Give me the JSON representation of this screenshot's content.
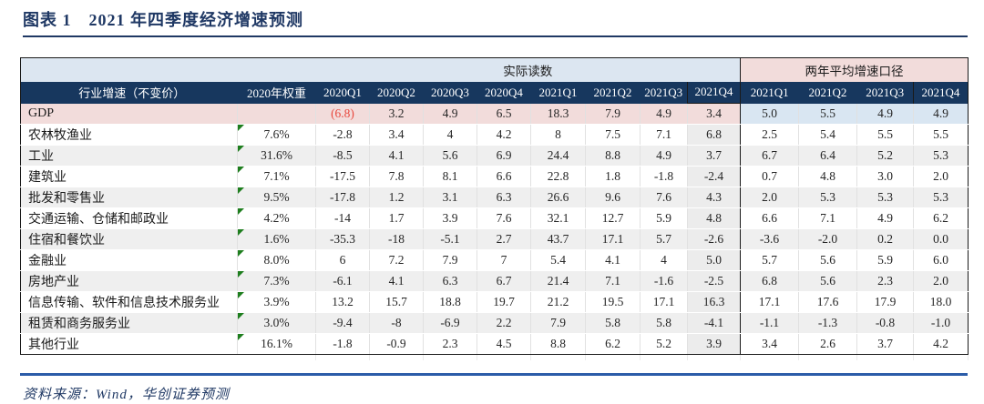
{
  "title": "图表 1　2021 年四季度经济增速预测",
  "source_note": "资料来源：Wind，华创证券预测",
  "colors": {
    "title_navy": "#1F3864",
    "header_navy": "#17375E",
    "band_blue": "#DCE6F1",
    "band_pink": "#F2DCDB",
    "gdp_row_pink": "#F2DCDB",
    "gdp_two_year_blue": "#D9E6F2",
    "alt_row_gray": "#EFEFEF",
    "negative_red": "#E8483E",
    "marker_green": "#1E7E1E",
    "footer_rule_blue": "#2B5CA8"
  },
  "table": {
    "bands": {
      "actual": "实际读数",
      "two_year": "两年平均增速口径"
    },
    "header": {
      "industry": "行业增速（不变价）",
      "weight": "2020年权重",
      "actual_quarters": [
        "2020Q1",
        "2020Q2",
        "2020Q3",
        "2020Q4",
        "2021Q1",
        "2021Q2",
        "2021Q3",
        "2021Q4"
      ],
      "two_year_quarters": [
        "2021Q1",
        "2021Q2",
        "2021Q3",
        "2021Q4"
      ]
    },
    "rows": [
      {
        "name": "GDP",
        "weight": "",
        "marker": false,
        "gdp": true,
        "red_first": true,
        "actual": [
          "(6.8)",
          "3.2",
          "4.9",
          "6.5",
          "18.3",
          "7.9",
          "4.9",
          "3.4"
        ],
        "two_year": [
          "5.0",
          "5.5",
          "4.9",
          "4.9"
        ]
      },
      {
        "name": "农林牧渔业",
        "weight": "7.6%",
        "marker": true,
        "actual": [
          "-2.8",
          "3.4",
          "4",
          "4.2",
          "8",
          "7.5",
          "7.1",
          "6.8"
        ],
        "two_year": [
          "2.5",
          "5.4",
          "5.5",
          "5.5"
        ]
      },
      {
        "name": "工业",
        "weight": "31.6%",
        "marker": true,
        "actual": [
          "-8.5",
          "4.1",
          "5.6",
          "6.9",
          "24.4",
          "8.8",
          "4.9",
          "3.7"
        ],
        "two_year": [
          "6.7",
          "6.4",
          "5.2",
          "5.3"
        ]
      },
      {
        "name": "建筑业",
        "weight": "7.1%",
        "marker": true,
        "actual": [
          "-17.5",
          "7.8",
          "8.1",
          "6.6",
          "22.8",
          "1.8",
          "-1.8",
          "-2.4"
        ],
        "two_year": [
          "0.7",
          "4.8",
          "3.0",
          "2.0"
        ]
      },
      {
        "name": "批发和零售业",
        "weight": "9.5%",
        "marker": true,
        "actual": [
          "-17.8",
          "1.2",
          "3.1",
          "6.3",
          "26.6",
          "9.6",
          "7.6",
          "4.3"
        ],
        "two_year": [
          "2.0",
          "5.3",
          "5.3",
          "5.3"
        ]
      },
      {
        "name": "交通运输、仓储和邮政业",
        "weight": "4.2%",
        "marker": true,
        "actual": [
          "-14",
          "1.7",
          "3.9",
          "7.6",
          "32.1",
          "12.7",
          "5.9",
          "4.8"
        ],
        "two_year": [
          "6.6",
          "7.1",
          "4.9",
          "6.2"
        ]
      },
      {
        "name": "住宿和餐饮业",
        "weight": "1.6%",
        "marker": true,
        "actual": [
          "-35.3",
          "-18",
          "-5.1",
          "2.7",
          "43.7",
          "17.1",
          "5.7",
          "-2.6"
        ],
        "two_year": [
          "-3.6",
          "-2.0",
          "0.2",
          "0.0"
        ]
      },
      {
        "name": "金融业",
        "weight": "8.0%",
        "marker": true,
        "actual": [
          "6",
          "7.2",
          "7.9",
          "7",
          "5.4",
          "4.1",
          "4",
          "5.0"
        ],
        "two_year": [
          "5.7",
          "5.6",
          "5.9",
          "6.0"
        ]
      },
      {
        "name": "房地产业",
        "weight": "7.3%",
        "marker": true,
        "actual": [
          "-6.1",
          "4.1",
          "6.3",
          "6.7",
          "21.4",
          "7.1",
          "-1.6",
          "-2.5"
        ],
        "two_year": [
          "6.8",
          "5.6",
          "2.3",
          "2.0"
        ]
      },
      {
        "name": "信息传输、软件和信息技术服务业",
        "weight": "3.9%",
        "marker": true,
        "actual": [
          "13.2",
          "15.7",
          "18.8",
          "19.7",
          "21.2",
          "19.5",
          "17.1",
          "16.3"
        ],
        "two_year": [
          "17.1",
          "17.6",
          "17.9",
          "18.0"
        ]
      },
      {
        "name": "租赁和商务服务业",
        "weight": "3.0%",
        "marker": true,
        "actual": [
          "-9.4",
          "-8",
          "-6.9",
          "2.2",
          "7.9",
          "5.8",
          "5.8",
          "-4.1"
        ],
        "two_year": [
          "-1.1",
          "-1.3",
          "-0.8",
          "-1.0"
        ]
      },
      {
        "name": "其他行业",
        "weight": "16.1%",
        "marker": true,
        "actual": [
          "-1.8",
          "-0.9",
          "2.3",
          "4.5",
          "8.8",
          "6.2",
          "5.2",
          "3.9"
        ],
        "two_year": [
          "3.4",
          "2.6",
          "3.7",
          "4.2"
        ]
      }
    ]
  }
}
